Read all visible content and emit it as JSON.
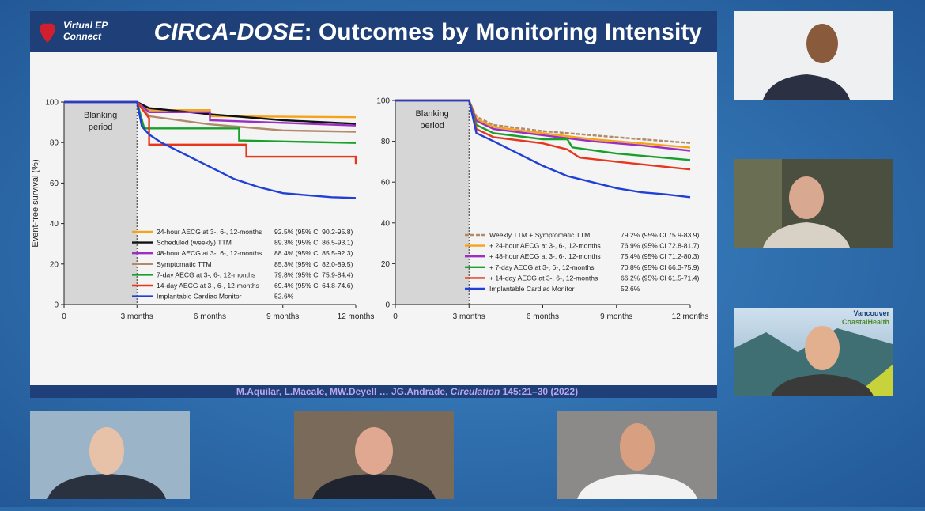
{
  "header": {
    "logo": [
      "Virtual EP",
      "Connect"
    ],
    "title_em": "CIRCA-DOSE",
    "title": ": Outcomes by Monitoring Intensity"
  },
  "charts": [
    {
      "type": "line",
      "ylabel": "Event-free survival (%)",
      "blanking": [
        "Blanking",
        "period"
      ],
      "xlim": [
        0,
        12
      ],
      "ylim": [
        0,
        100
      ],
      "xticks": [
        0,
        {
          "value": 3,
          "label": "3 months"
        },
        {
          "value": 6,
          "label": "6 months"
        },
        {
          "value": 9,
          "label": "9 months"
        },
        {
          "value": 12,
          "label": "12 months"
        }
      ],
      "yticks": [
        0,
        20,
        40,
        60,
        80,
        100
      ],
      "series": [
        {
          "name": "24-hour AECG at 3-, 6-, 12-months",
          "summary": "92.5% (95% CI 90.2-95.8)",
          "color": "#f5a31a",
          "x": [
            0,
            3,
            3.5,
            6,
            6,
            12
          ],
          "values": [
            100,
            100,
            96,
            96,
            93,
            92.5
          ]
        },
        {
          "name": "Scheduled (weekly) TTM",
          "summary": "89.3% (95% CI 86.5-93.1)",
          "color": "#111111",
          "x": [
            0,
            3,
            3.5,
            6,
            9,
            12
          ],
          "values": [
            100,
            100,
            97,
            94,
            91,
            89.3
          ]
        },
        {
          "name": "48-hour AECG at 3-, 6-, 12-months",
          "summary": "88.4% (95% CI 85.5-92.3)",
          "color": "#9b2fc0",
          "x": [
            0,
            3,
            3.5,
            6,
            6,
            12
          ],
          "values": [
            100,
            100,
            95,
            95,
            91,
            88.4
          ]
        },
        {
          "name": "Symptomatic TTM",
          "summary": "85.3% (95% CI 82.0-89.5)",
          "color": "#b08a6a",
          "x": [
            0,
            3,
            3.5,
            6,
            9,
            12
          ],
          "values": [
            100,
            100,
            93,
            89,
            86,
            85.3
          ]
        },
        {
          "name": "7-day AECG at 3-, 6-, 12-months",
          "summary": "79.8% (95% CI 75.9-84.4)",
          "color": "#17a02a",
          "x": [
            0,
            3,
            3.3,
            7.2,
            7.2,
            12
          ],
          "values": [
            100,
            100,
            87,
            87,
            81,
            79.8
          ]
        },
        {
          "name": "14-day AECG at 3-, 6-, 12-months",
          "summary": "69.4% (95% CI 64.8-74.6)",
          "color": "#e8361c",
          "x": [
            0,
            3,
            3.5,
            3.5,
            7.5,
            7.5,
            12,
            12
          ],
          "values": [
            100,
            100,
            92,
            79,
            79,
            73,
            73,
            69.4
          ]
        },
        {
          "name": "Implantable Cardiac Monitor",
          "summary": "52.6%",
          "color": "#1f3fd6",
          "x": [
            0,
            3,
            3.2,
            3.5,
            4,
            5,
            6,
            7,
            8,
            9,
            10,
            11,
            12
          ],
          "values": [
            100,
            100,
            88,
            84,
            80,
            74,
            68,
            62,
            58,
            55,
            54,
            53,
            52.6
          ]
        }
      ]
    },
    {
      "type": "line",
      "blanking": [
        "Blanking",
        "period"
      ],
      "xlim": [
        0,
        12
      ],
      "ylim": [
        0,
        100
      ],
      "xticks": [
        0,
        {
          "value": 3,
          "label": "3 months"
        },
        {
          "value": 6,
          "label": "6 months"
        },
        {
          "value": 9,
          "label": "9 months"
        },
        {
          "value": 12,
          "label": "12 months"
        }
      ],
      "yticks": [
        0,
        20,
        40,
        60,
        80,
        100
      ],
      "series": [
        {
          "name": "Weekly TTM + Symptomatic TTM",
          "summary": "79.2% (95% CI 75.9-83.9)",
          "color": "#b08a6a",
          "dash": true,
          "x": [
            0,
            3,
            3.3,
            4,
            6,
            8,
            10,
            12
          ],
          "values": [
            100,
            100,
            92,
            88,
            85,
            83,
            81,
            79.2
          ]
        },
        {
          "name": "+ 24-hour AECG at 3-, 6-, 12-months",
          "summary": "76.9% (95% CI 72.8-81.7)",
          "color": "#f5a31a",
          "x": [
            0,
            3,
            3.3,
            4,
            6,
            8,
            10,
            12
          ],
          "values": [
            100,
            100,
            91,
            87,
            84,
            81,
            79,
            76.9
          ]
        },
        {
          "name": "+ 48-hour AECG at 3-, 6-, 12-months",
          "summary": "75.4% (95% CI 71.2-80.3)",
          "color": "#9b2fc0",
          "x": [
            0,
            3,
            3.3,
            4,
            6,
            8,
            10,
            12
          ],
          "values": [
            100,
            100,
            90,
            86,
            83,
            80,
            78,
            75.4
          ]
        },
        {
          "name": "+ 7-day AECG at 3-, 6-, 12-months",
          "summary": "70.8% (95% CI 66.3-75.9)",
          "color": "#17a02a",
          "x": [
            0,
            3,
            3.3,
            4,
            6,
            7,
            7.2,
            9,
            12
          ],
          "values": [
            100,
            100,
            88,
            84,
            81,
            81,
            77,
            74,
            70.8
          ]
        },
        {
          "name": "+ 14-day AECG at 3-, 6-, 12-months",
          "summary": "66.2% (95% CI 61.5-71.4)",
          "color": "#e8361c",
          "x": [
            0,
            3,
            3.3,
            4,
            6,
            7,
            7.5,
            9,
            12
          ],
          "values": [
            100,
            100,
            86,
            82,
            79,
            76,
            72,
            70,
            66.2
          ]
        },
        {
          "name": "Implantable Cardiac Monitor",
          "summary": "52.6%",
          "color": "#1f3fd6",
          "x": [
            0,
            3,
            3.3,
            4,
            5,
            6,
            7,
            8,
            9,
            10,
            11,
            12
          ],
          "values": [
            100,
            100,
            84,
            80,
            74,
            68,
            63,
            60,
            57,
            55,
            54,
            52.6
          ]
        }
      ]
    }
  ],
  "citation": {
    "authors": "M.Aquilar, L.Macale, MW.Deyell … JG.Andrade, ",
    "journal": "Circulation",
    "ref": "  145:21–30 (2022)"
  },
  "sponsor_logo": [
    "Vancouver",
    "CoastalHealth"
  ]
}
